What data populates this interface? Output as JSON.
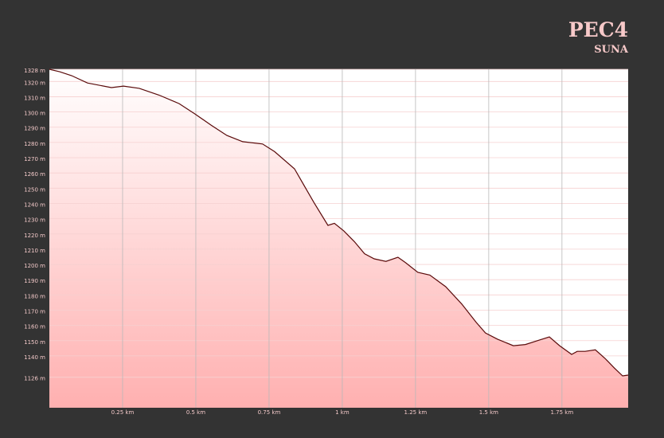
{
  "chart_data": {
    "type": "area",
    "title": "PEC4",
    "subtitle": "SUNA",
    "x": [
      0,
      0.035,
      0.076,
      0.13,
      0.212,
      0.253,
      0.307,
      0.375,
      0.443,
      0.497,
      0.552,
      0.606,
      0.66,
      0.728,
      0.769,
      0.837,
      0.878,
      0.905,
      0.951,
      0.973,
      1.005,
      1.041,
      1.076,
      1.109,
      1.149,
      1.19,
      1.217,
      1.258,
      1.299,
      1.353,
      1.408,
      1.457,
      1.489,
      1.53,
      1.584,
      1.625,
      1.666,
      1.707,
      1.742,
      1.783,
      1.802,
      1.829,
      1.864,
      1.897,
      1.929,
      1.957,
      1.976
    ],
    "values": [
      1328,
      1326.4,
      1323.8,
      1319,
      1316,
      1317,
      1315.5,
      1311,
      1305.5,
      1298.7,
      1291.4,
      1284.6,
      1280.5,
      1279,
      1274,
      1262.7,
      1249,
      1240,
      1225.6,
      1227,
      1222,
      1215,
      1207,
      1203.7,
      1202,
      1204.7,
      1201,
      1194.8,
      1193,
      1185.4,
      1174,
      1162,
      1155,
      1151,
      1146.7,
      1147.5,
      1150,
      1152.5,
      1146.7,
      1141,
      1143,
      1143,
      1144,
      1138.4,
      1132,
      1126.9,
      1127.4
    ],
    "line_color": "#5a0a0a",
    "fill_top": "#ffffff",
    "fill_bottom": "#ffb0b0",
    "xlim": [
      0,
      1.976
    ],
    "ylim": [
      1106,
      1328
    ],
    "xticks": [
      {
        "value": 0.25,
        "label": "0.25 km"
      },
      {
        "value": 0.5,
        "label": "0.5 km"
      },
      {
        "value": 0.75,
        "label": "0.75 km"
      },
      {
        "value": 1,
        "label": "1 km"
      },
      {
        "value": 1.25,
        "label": "1.25 km"
      },
      {
        "value": 1.5,
        "label": "1.5 km"
      },
      {
        "value": 1.75,
        "label": "1.75 km"
      }
    ],
    "yticks": [
      {
        "value": 1328,
        "label": "1328 m"
      },
      {
        "value": 1320,
        "label": "1320 m"
      },
      {
        "value": 1310,
        "label": "1310 m"
      },
      {
        "value": 1300,
        "label": "1300 m"
      },
      {
        "value": 1290,
        "label": "1290 m"
      },
      {
        "value": 1280,
        "label": "1280 m"
      },
      {
        "value": 1270,
        "label": "1270 m"
      },
      {
        "value": 1260,
        "label": "1260 m"
      },
      {
        "value": 1250,
        "label": "1250 m"
      },
      {
        "value": 1240,
        "label": "1240 m"
      },
      {
        "value": 1230,
        "label": "1230 m"
      },
      {
        "value": 1220,
        "label": "1220 m"
      },
      {
        "value": 1210,
        "label": "1210 m"
      },
      {
        "value": 1200,
        "label": "1200 m"
      },
      {
        "value": 1190,
        "label": "1190 m"
      },
      {
        "value": 1180,
        "label": "1180 m"
      },
      {
        "value": 1170,
        "label": "1170 m"
      },
      {
        "value": 1160,
        "label": "1160 m"
      },
      {
        "value": 1150,
        "label": "1150 m"
      },
      {
        "value": 1140,
        "label": "1140 m"
      },
      {
        "value": 1126,
        "label": "1126 m"
      }
    ],
    "grid": true
  }
}
